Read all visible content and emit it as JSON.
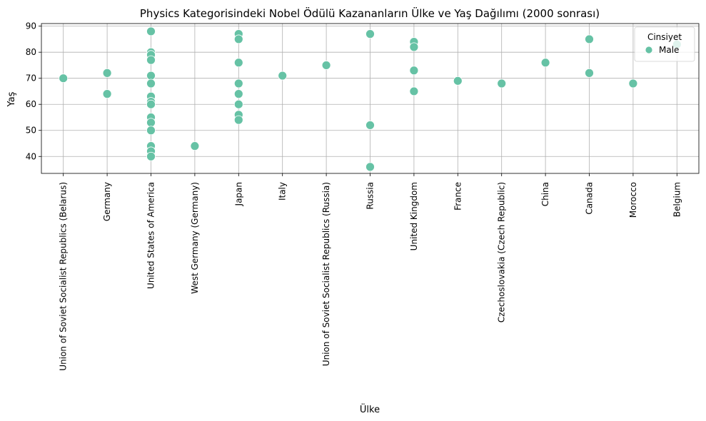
{
  "chart_data": {
    "type": "scatter",
    "title": "Physics Kategorisindeki Nobel Ödülü Kazananların Ülke ve Yaş Dağılımı (2000 sonrası)",
    "xlabel": "Ülke",
    "ylabel": "Yaş",
    "categories": [
      "Union of Soviet Socialist Republics (Belarus)",
      "Germany",
      "United States of America",
      "West Germany (Germany)",
      "Japan",
      "Italy",
      "Union of Soviet Socialist Republics (Russia)",
      "Russia",
      "United Kingdom",
      "France",
      "Czechoslovakia (Czech Republic)",
      "China",
      "Canada",
      "Morocco",
      "Belgium"
    ],
    "ylim": [
      33.5,
      91
    ],
    "yticks": [
      40,
      50,
      60,
      70,
      80,
      90
    ],
    "grid": true,
    "legend": {
      "title": "Cinsiyet",
      "placement": "top-right",
      "entries": [
        "Male"
      ]
    },
    "series": [
      {
        "name": "Male",
        "color": "#66c2a5",
        "points": [
          {
            "x": "Union of Soviet Socialist Republics (Belarus)",
            "y": 70
          },
          {
            "x": "Germany",
            "y": 72
          },
          {
            "x": "Germany",
            "y": 64
          },
          {
            "x": "United States of America",
            "y": 88
          },
          {
            "x": "United States of America",
            "y": 80
          },
          {
            "x": "United States of America",
            "y": 79
          },
          {
            "x": "United States of America",
            "y": 77
          },
          {
            "x": "United States of America",
            "y": 71
          },
          {
            "x": "United States of America",
            "y": 68
          },
          {
            "x": "United States of America",
            "y": 63
          },
          {
            "x": "United States of America",
            "y": 61
          },
          {
            "x": "United States of America",
            "y": 60
          },
          {
            "x": "United States of America",
            "y": 55
          },
          {
            "x": "United States of America",
            "y": 53
          },
          {
            "x": "United States of America",
            "y": 50
          },
          {
            "x": "United States of America",
            "y": 44
          },
          {
            "x": "United States of America",
            "y": 42
          },
          {
            "x": "United States of America",
            "y": 40
          },
          {
            "x": "West Germany (Germany)",
            "y": 44
          },
          {
            "x": "Japan",
            "y": 87
          },
          {
            "x": "Japan",
            "y": 85
          },
          {
            "x": "Japan",
            "y": 76
          },
          {
            "x": "Japan",
            "y": 68
          },
          {
            "x": "Japan",
            "y": 64
          },
          {
            "x": "Japan",
            "y": 60
          },
          {
            "x": "Japan",
            "y": 56
          },
          {
            "x": "Japan",
            "y": 54
          },
          {
            "x": "Italy",
            "y": 71
          },
          {
            "x": "Union of Soviet Socialist Republics (Russia)",
            "y": 75
          },
          {
            "x": "Russia",
            "y": 87
          },
          {
            "x": "Russia",
            "y": 52
          },
          {
            "x": "Russia",
            "y": 36
          },
          {
            "x": "United Kingdom",
            "y": 84
          },
          {
            "x": "United Kingdom",
            "y": 82
          },
          {
            "x": "United Kingdom",
            "y": 73
          },
          {
            "x": "United Kingdom",
            "y": 65
          },
          {
            "x": "France",
            "y": 69
          },
          {
            "x": "Czechoslovakia (Czech Republic)",
            "y": 68
          },
          {
            "x": "China",
            "y": 76
          },
          {
            "x": "Canada",
            "y": 85
          },
          {
            "x": "Canada",
            "y": 72
          },
          {
            "x": "Morocco",
            "y": 68
          },
          {
            "x": "Belgium",
            "y": 83
          }
        ]
      }
    ]
  }
}
